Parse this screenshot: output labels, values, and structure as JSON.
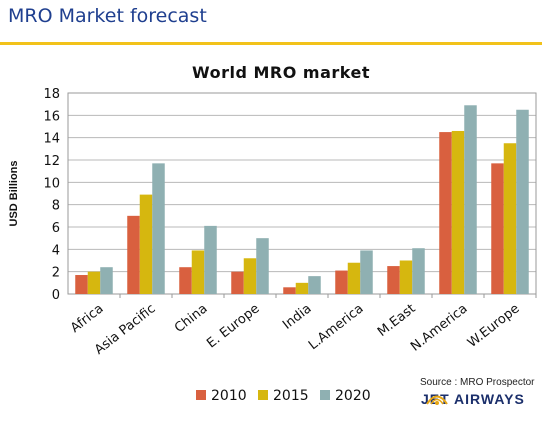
{
  "slide": {
    "title": "MRO Market forecast"
  },
  "source_note": "Source : MRO Prospector",
  "logo": {
    "text": "JET AIRWAYS",
    "icon": "sunrise-icon"
  },
  "colors": {
    "title": "#1f3f8f",
    "rule": "#f2c21a",
    "s2010": "#d9603f",
    "s2015": "#d6b70f",
    "s2020": "#8fb0b2",
    "logo_navy": "#1b2f6b",
    "logo_gold": "#e6a614"
  },
  "chart_data": {
    "type": "bar",
    "title": "World MRO market",
    "ylabel": "USD Billions",
    "xlabel": "",
    "ylim": [
      0,
      18
    ],
    "yticks": [
      0,
      2,
      4,
      6,
      8,
      10,
      12,
      14,
      16,
      18
    ],
    "grid": true,
    "legend_position": "bottom",
    "categories": [
      "Africa",
      "Asia Pacific",
      "China",
      "E. Europe",
      "India",
      "L.America",
      "M.East",
      "N.America",
      "W.Europe"
    ],
    "series": [
      {
        "name": "2010",
        "color": "#d9603f",
        "values": [
          1.7,
          7.0,
          2.4,
          2.0,
          0.6,
          2.1,
          2.5,
          14.5,
          11.7
        ]
      },
      {
        "name": "2015",
        "color": "#d6b70f",
        "values": [
          2.0,
          8.9,
          3.9,
          3.2,
          1.0,
          2.8,
          3.0,
          14.6,
          13.5
        ]
      },
      {
        "name": "2020",
        "color": "#8fb0b2",
        "values": [
          2.4,
          11.7,
          6.1,
          5.0,
          1.6,
          3.9,
          4.1,
          16.9,
          16.5
        ]
      }
    ]
  }
}
